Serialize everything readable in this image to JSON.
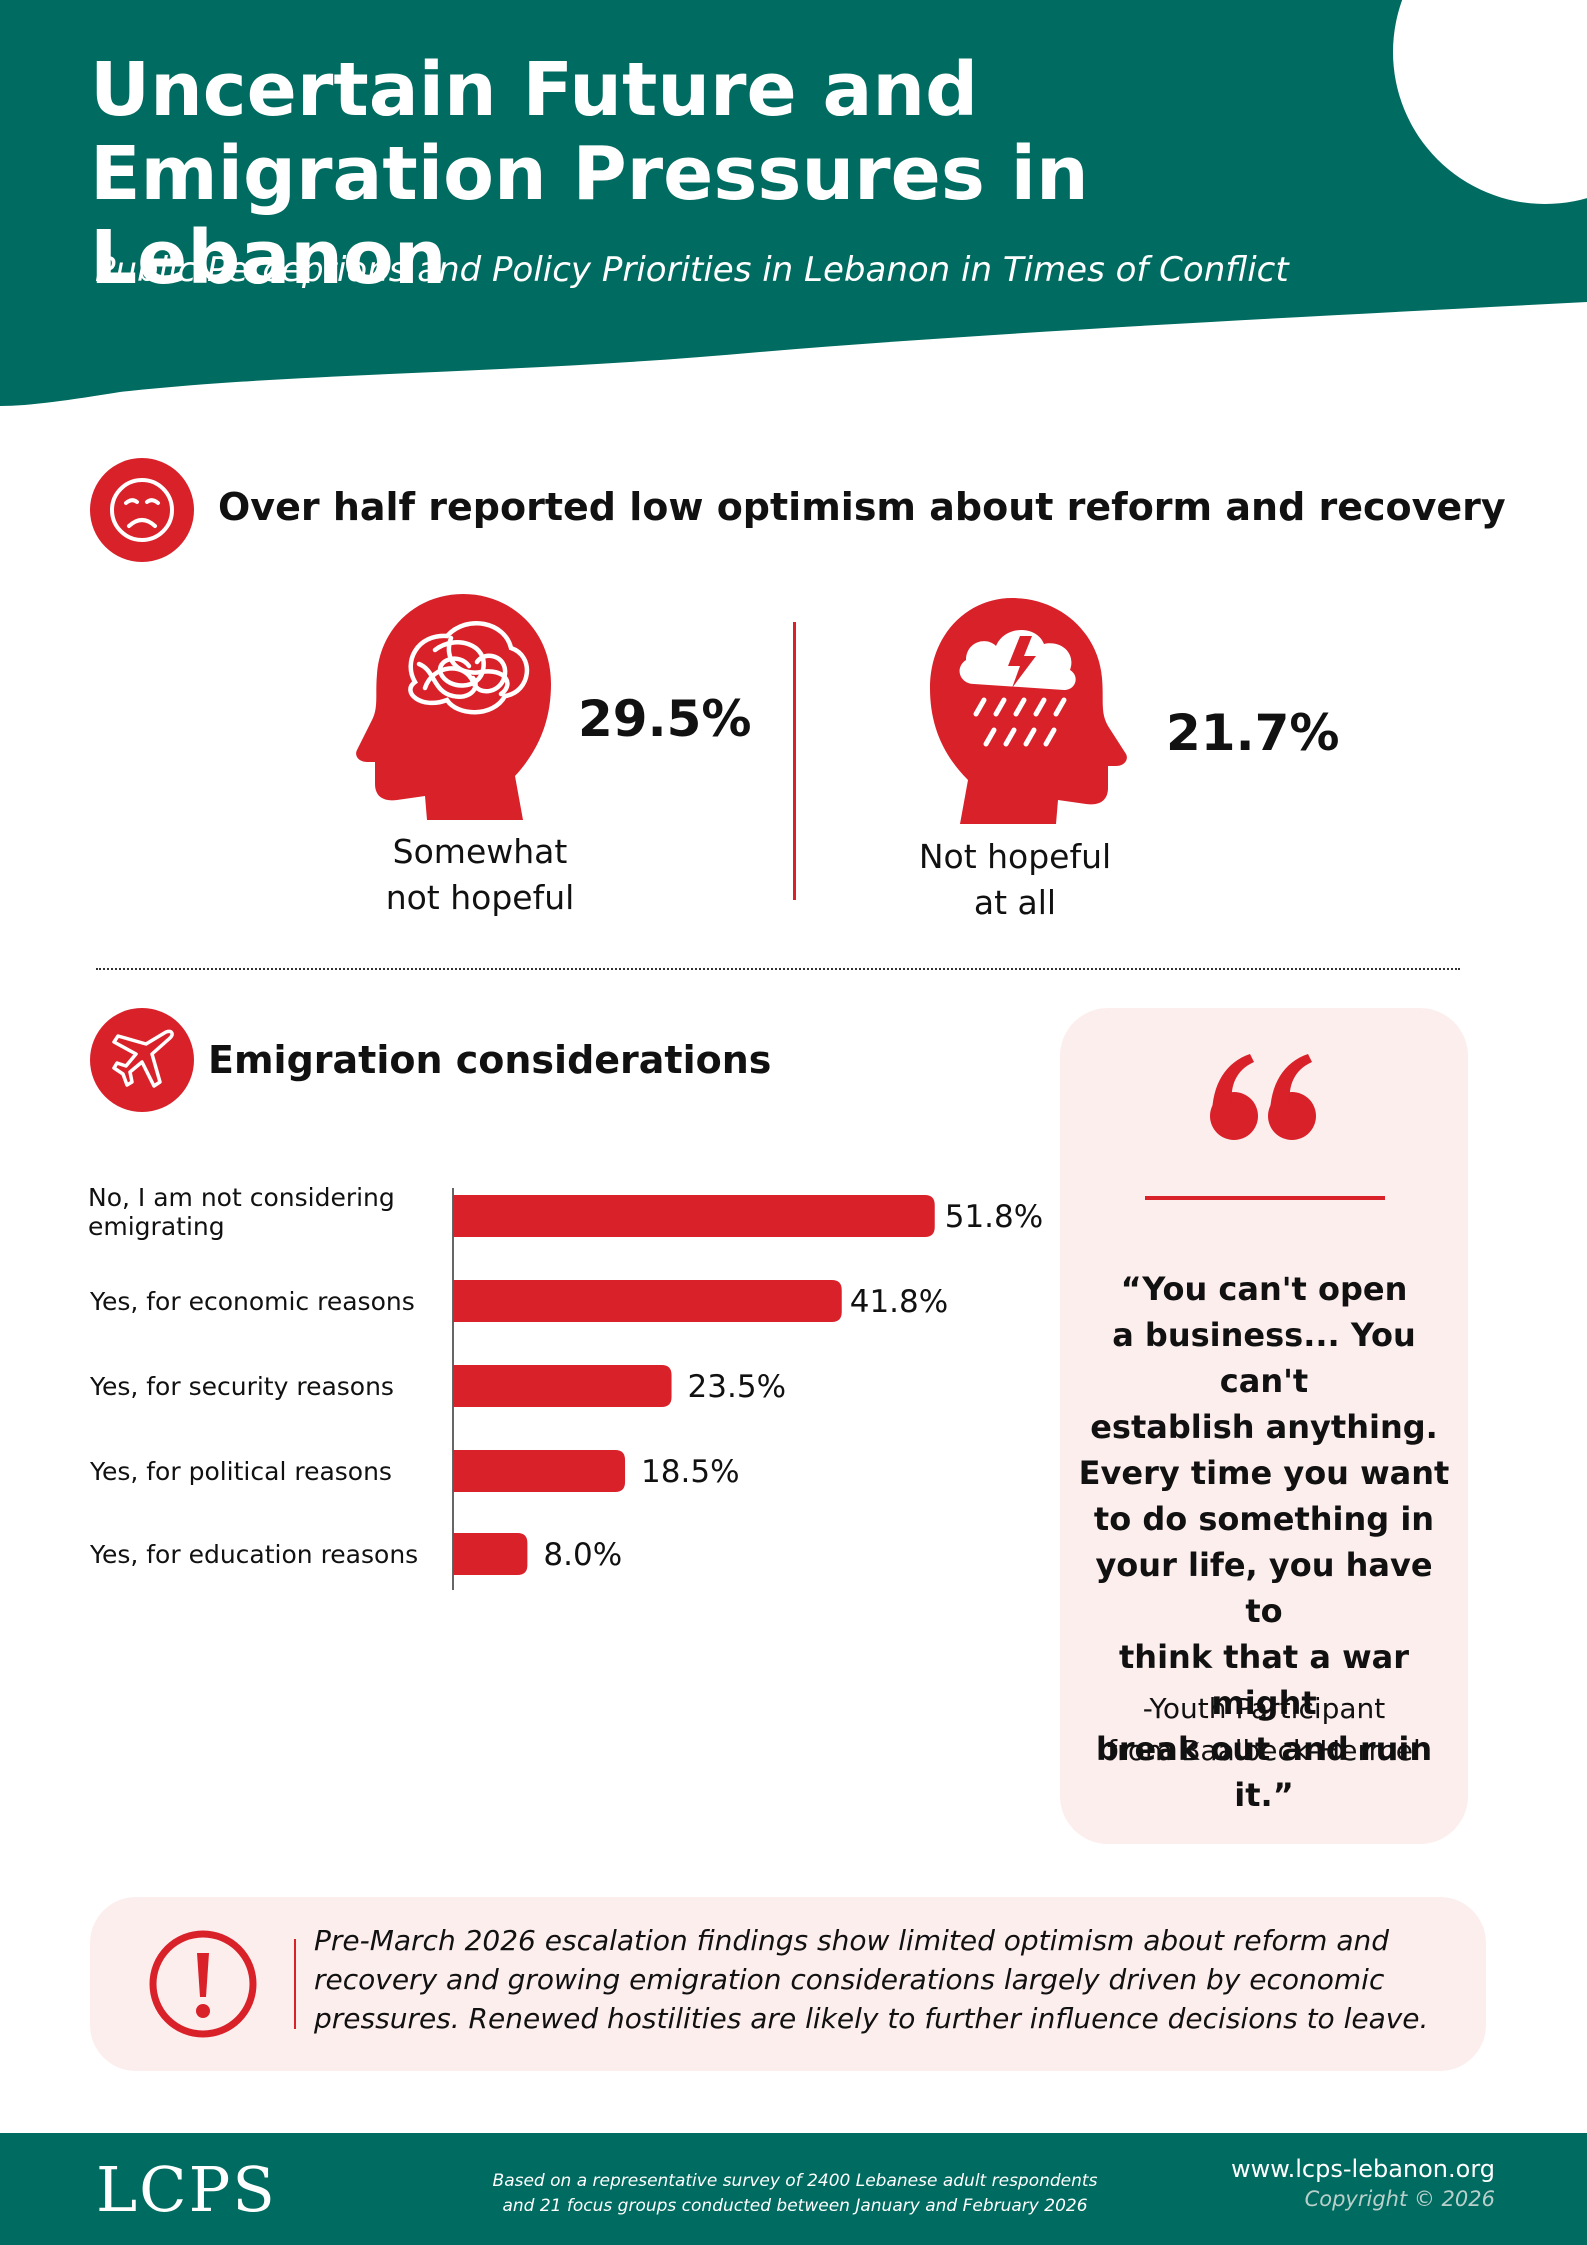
{
  "header": {
    "title": "Uncertain Future and Emigration Pressures in Lebanon",
    "subtitle": "Public Perceptions and Policy Priorities in Lebanon in Times of Conflict"
  },
  "colors": {
    "teal": "#006b60",
    "red": "#d9212a",
    "pink": "#fdeeee"
  },
  "optimism": {
    "heading": "Over half reported low optimism about reform and recovery",
    "icon": "sad-face-icon",
    "items": [
      {
        "value": "29.5%",
        "label_line1": "Somewhat",
        "label_line2": "not hopeful",
        "icon": "tangled-thoughts-head-icon"
      },
      {
        "value": "21.7%",
        "label_line1": "Not hopeful",
        "label_line2": "at all",
        "icon": "storm-cloud-head-icon"
      }
    ]
  },
  "emigration": {
    "heading": "Emigration considerations",
    "icon": "airplane-icon"
  },
  "chart_data": {
    "type": "bar",
    "orientation": "horizontal",
    "categories": [
      "No, I am not considering emigrating",
      "Yes, for economic reasons",
      "Yes, for security reasons",
      "Yes, for political reasons",
      "Yes, for education reasons"
    ],
    "category_lines": [
      [
        "No, I am not considering",
        "emigrating"
      ],
      [
        "Yes, for economic reasons"
      ],
      [
        "Yes, for security reasons"
      ],
      [
        "Yes, for political reasons"
      ],
      [
        "Yes, for education reasons"
      ]
    ],
    "values": [
      51.8,
      41.8,
      23.5,
      18.5,
      8.0
    ],
    "value_labels": [
      "51.8%",
      "41.8%",
      "23.5%",
      "18.5%",
      "8.0%"
    ],
    "xlim": [
      0,
      55
    ],
    "grid": false,
    "color": "#d9212a"
  },
  "quote": {
    "icon": "quotation-mark-icon",
    "text": "“You can't open a business... You can't establish anything. Every time you want to do something in your life, you have to think that a war might break out and ruin it.”",
    "lines": [
      "“You can't open",
      "a business... You can't",
      "establish anything.",
      "Every time you want",
      "to do something in",
      "your life, you have to",
      "think that a war might",
      "break out and ruin it.”"
    ],
    "author_line1": "-Youth Participant",
    "author_line2": "from Baalbeck-Hermel"
  },
  "note": {
    "icon": "exclamation-icon",
    "line1": "Pre-March 2026 escalation findings show limited optimism about reform and",
    "line2": "recovery and growing emigration considerations largely driven by economic",
    "line3": "pressures. Renewed hostilities are likely to further influence decisions to leave."
  },
  "footer": {
    "logo": "LCPS",
    "note_line1": "Based on a representative survey of 2400 Lebanese adult respondents",
    "note_line2": "and 21 focus groups conducted between January and February 2026",
    "url": "www.lcps-lebanon.org",
    "copyright": "Copyright © 2026"
  }
}
